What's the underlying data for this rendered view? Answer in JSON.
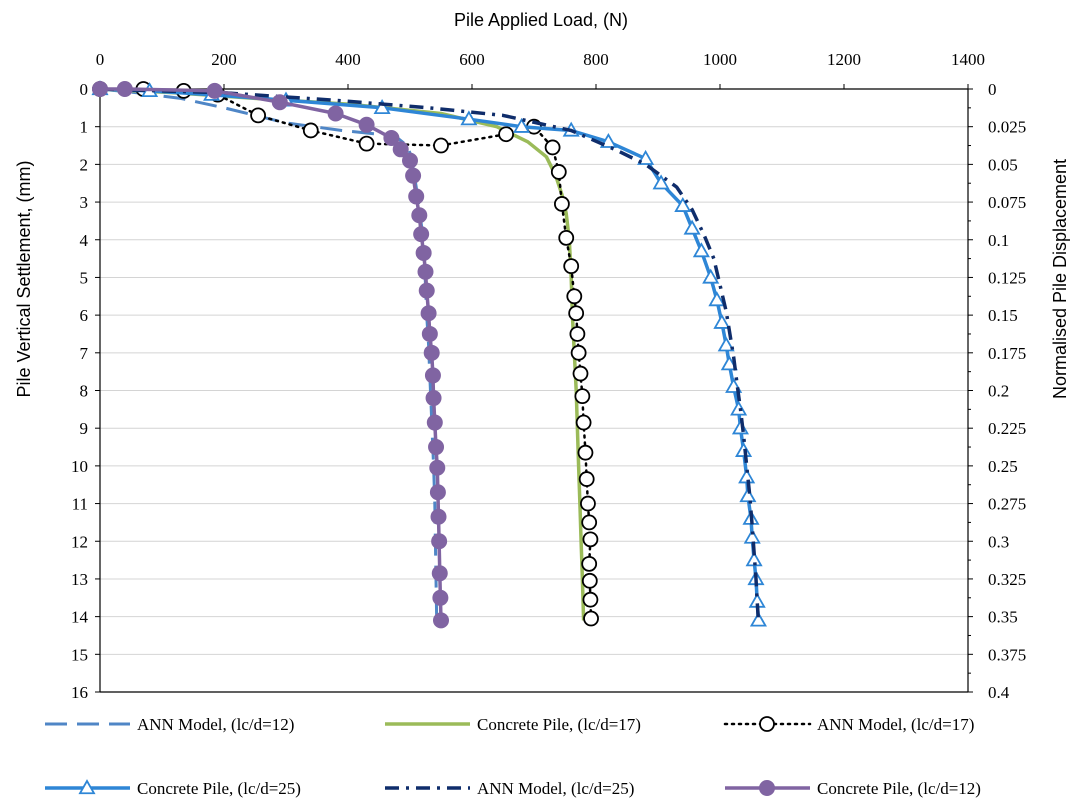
{
  "chart_data": {
    "type": "line",
    "xlabel": "Pile Applied Load, (N)",
    "ylabel": "Pile Vertical Settlement, (mm)",
    "y2label": "Normalised Pile Displacement",
    "xlim": [
      0,
      1400
    ],
    "ylim": [
      0,
      16
    ],
    "y_inverted": true,
    "x_ticks": [
      "0",
      "200",
      "400",
      "600",
      "800",
      "1000",
      "1200",
      "1400"
    ],
    "y_ticks": [
      "0",
      "1",
      "2",
      "3",
      "4",
      "5",
      "6",
      "7",
      "8",
      "9",
      "10",
      "11",
      "12",
      "13",
      "14",
      "15",
      "16"
    ],
    "y2_ticks": [
      "0",
      "0.025",
      "0.05",
      "0.075",
      "0.1",
      "0.125",
      "0.15",
      "0.175",
      "0.2",
      "0.225",
      "0.25",
      "0.275",
      "0.3",
      "0.325",
      "0.35",
      "0.375",
      "0.4"
    ],
    "grid": "horizontal",
    "legend_position": "bottom",
    "series": [
      {
        "name": "ANN Model, (lc/d=12)",
        "color": "#4f86c6",
        "style": "dashed",
        "marker": "none",
        "points": [
          [
            0,
            0
          ],
          [
            60,
            0.1
          ],
          [
            130,
            0.25
          ],
          [
            200,
            0.5
          ],
          [
            300,
            0.9
          ],
          [
            390,
            1.1
          ],
          [
            450,
            1.2
          ],
          [
            480,
            1.3
          ],
          [
            495,
            1.5
          ],
          [
            500,
            1.7
          ],
          [
            505,
            2.1
          ],
          [
            510,
            2.6
          ],
          [
            515,
            3.2
          ],
          [
            520,
            3.8
          ],
          [
            523,
            4.5
          ],
          [
            525,
            5.2
          ],
          [
            527,
            6
          ],
          [
            530,
            6.8
          ],
          [
            532,
            7.6
          ],
          [
            534,
            8.4
          ],
          [
            536,
            9.2
          ],
          [
            538,
            10
          ],
          [
            540,
            11
          ],
          [
            541,
            12
          ],
          [
            542,
            13
          ],
          [
            543,
            14.1
          ]
        ]
      },
      {
        "name": "Concrete Pile, (lc/d=17)",
        "color": "#9bbb59",
        "style": "solid",
        "marker": "none",
        "points": [
          [
            0,
            0
          ],
          [
            120,
            0.1
          ],
          [
            250,
            0.25
          ],
          [
            400,
            0.4
          ],
          [
            550,
            0.65
          ],
          [
            640,
            1.0
          ],
          [
            690,
            1.4
          ],
          [
            720,
            1.8
          ],
          [
            735,
            2.3
          ],
          [
            745,
            2.8
          ],
          [
            752,
            3.3
          ],
          [
            757,
            4
          ],
          [
            760,
            5
          ],
          [
            762,
            6
          ],
          [
            765,
            7
          ],
          [
            768,
            8
          ],
          [
            770,
            9
          ],
          [
            772,
            10
          ],
          [
            774,
            11
          ],
          [
            776,
            12
          ],
          [
            778,
            13
          ],
          [
            780,
            14.1
          ]
        ]
      },
      {
        "name": "ANN Model, (lc/d=17)",
        "color": "#000000",
        "style": "dotted",
        "marker": "open-circle",
        "points": [
          [
            0,
            0
          ],
          [
            70,
            0
          ],
          [
            135,
            0.05
          ],
          [
            190,
            0.15
          ],
          [
            255,
            0.7
          ],
          [
            340,
            1.1
          ],
          [
            430,
            1.45
          ],
          [
            550,
            1.5
          ],
          [
            655,
            1.2
          ],
          [
            700,
            1.0
          ],
          [
            730,
            1.55
          ],
          [
            740,
            2.2
          ],
          [
            745,
            3.05
          ],
          [
            752,
            3.95
          ],
          [
            760,
            4.7
          ],
          [
            765,
            5.5
          ],
          [
            768,
            5.95
          ],
          [
            770,
            6.5
          ],
          [
            772,
            7
          ],
          [
            775,
            7.55
          ],
          [
            778,
            8.15
          ],
          [
            780,
            8.85
          ],
          [
            783,
            9.65
          ],
          [
            785,
            10.35
          ],
          [
            787,
            11
          ],
          [
            789,
            11.5
          ],
          [
            791,
            11.95
          ],
          [
            789,
            12.6
          ],
          [
            790,
            13.05
          ],
          [
            791,
            13.55
          ],
          [
            792,
            14.05
          ]
        ]
      },
      {
        "name": "Concrete Pile, (lc/d=25)",
        "color": "#2e86d6",
        "style": "solid",
        "marker": "open-triangle",
        "points": [
          [
            0,
            0
          ],
          [
            80,
            0.05
          ],
          [
            180,
            0.15
          ],
          [
            300,
            0.3
          ],
          [
            455,
            0.5
          ],
          [
            595,
            0.8
          ],
          [
            680,
            1.0
          ],
          [
            760,
            1.1
          ],
          [
            820,
            1.4
          ],
          [
            880,
            1.85
          ],
          [
            905,
            2.5
          ],
          [
            940,
            3.1
          ],
          [
            955,
            3.7
          ],
          [
            970,
            4.3
          ],
          [
            985,
            5.0
          ],
          [
            995,
            5.6
          ],
          [
            1003,
            6.2
          ],
          [
            1010,
            6.8
          ],
          [
            1015,
            7.3
          ],
          [
            1022,
            7.9
          ],
          [
            1030,
            8.5
          ],
          [
            1033,
            9.0
          ],
          [
            1038,
            9.6
          ],
          [
            1043,
            10.3
          ],
          [
            1045,
            10.8
          ],
          [
            1050,
            11.4
          ],
          [
            1052,
            11.9
          ],
          [
            1055,
            12.5
          ],
          [
            1058,
            13.0
          ],
          [
            1060,
            13.6
          ],
          [
            1062,
            14.1
          ]
        ]
      },
      {
        "name": "ANN Model, (lc/d=25)",
        "color": "#0f2d6b",
        "style": "dash-dot",
        "marker": "none",
        "points": [
          [
            0,
            0
          ],
          [
            200,
            0.1
          ],
          [
            380,
            0.3
          ],
          [
            530,
            0.5
          ],
          [
            650,
            0.7
          ],
          [
            760,
            1.1
          ],
          [
            830,
            1.6
          ],
          [
            880,
            2.0
          ],
          [
            930,
            2.6
          ],
          [
            955,
            3.2
          ],
          [
            975,
            3.9
          ],
          [
            990,
            4.5
          ],
          [
            1000,
            5.2
          ],
          [
            1010,
            5.9
          ],
          [
            1016,
            6.5
          ],
          [
            1022,
            7.1
          ],
          [
            1028,
            7.9
          ],
          [
            1033,
            8.5
          ],
          [
            1038,
            9.2
          ],
          [
            1043,
            10
          ],
          [
            1048,
            10.8
          ],
          [
            1052,
            11.6
          ],
          [
            1055,
            12.3
          ],
          [
            1058,
            13
          ],
          [
            1060,
            13.6
          ],
          [
            1062,
            14.1
          ]
        ]
      },
      {
        "name": "Concrete Pile, (lc/d=12)",
        "color": "#8064a2",
        "style": "solid",
        "marker": "filled-circle",
        "points": [
          [
            0,
            0
          ],
          [
            40,
            0
          ],
          [
            185,
            0.05
          ],
          [
            290,
            0.35
          ],
          [
            380,
            0.65
          ],
          [
            430,
            0.95
          ],
          [
            470,
            1.3
          ],
          [
            485,
            1.6
          ],
          [
            500,
            1.9
          ],
          [
            505,
            2.3
          ],
          [
            510,
            2.85
          ],
          [
            515,
            3.35
          ],
          [
            518,
            3.85
          ],
          [
            522,
            4.35
          ],
          [
            525,
            4.85
          ],
          [
            527,
            5.35
          ],
          [
            530,
            5.95
          ],
          [
            532,
            6.5
          ],
          [
            535,
            7.0
          ],
          [
            537,
            7.6
          ],
          [
            538,
            8.2
          ],
          [
            540,
            8.85
          ],
          [
            542,
            9.5
          ],
          [
            544,
            10.05
          ],
          [
            545,
            10.7
          ],
          [
            546,
            11.35
          ],
          [
            547,
            12.0
          ],
          [
            548,
            12.85
          ],
          [
            549,
            13.5
          ],
          [
            550,
            14.1
          ]
        ]
      }
    ]
  }
}
